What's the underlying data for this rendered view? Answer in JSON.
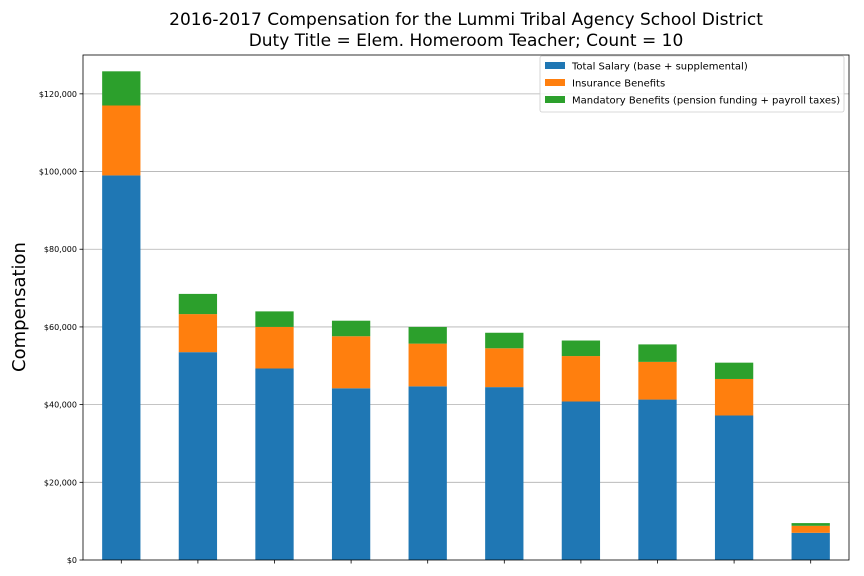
{
  "chart_data": {
    "type": "bar",
    "stacked": true,
    "title": "2016-2017 Compensation for the Lummi Tribal Agency School District",
    "subtitle": "Duty Title = Elem. Homeroom Teacher; Count = 10",
    "xlabel": "",
    "ylabel": "Compensation",
    "ylim": [
      0,
      130000
    ],
    "yticks": [
      0,
      20000,
      40000,
      60000,
      80000,
      100000,
      120000
    ],
    "ytick_labels": [
      "$0",
      "$20,000",
      "$40,000",
      "$60,000",
      "$80,000",
      "$100,000",
      "$120,000"
    ],
    "grid": "y",
    "legend_position": "top-right",
    "categories": [
      "",
      "",
      "",
      "",
      "",
      "",
      "",
      "",
      "",
      ""
    ],
    "series": [
      {
        "name": "Total Salary (base + supplemental)",
        "color": "#1f77b4",
        "values": [
          99000,
          53500,
          49300,
          44200,
          44700,
          44500,
          40800,
          41300,
          37200,
          7000
        ]
      },
      {
        "name": "Insurance Benefits",
        "color": "#ff7f0e",
        "values": [
          18000,
          9800,
          10700,
          13400,
          11000,
          10000,
          11700,
          9700,
          9400,
          1800
        ]
      },
      {
        "name": "Mandatory Benefits (pension funding + payroll taxes)",
        "color": "#2ca02c",
        "values": [
          8800,
          5200,
          4000,
          4000,
          4300,
          4000,
          4000,
          4500,
          4200,
          700
        ]
      }
    ]
  }
}
